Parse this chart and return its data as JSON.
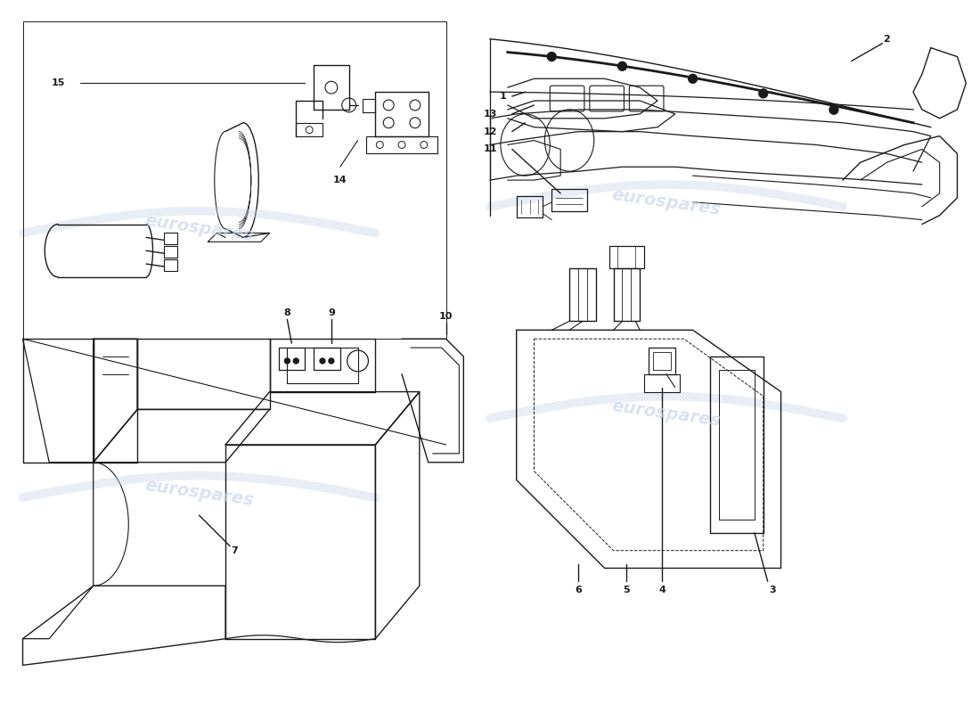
{
  "background_color": "#ffffff",
  "line_color": "#1a1a1a",
  "watermark_color": "#c8d4e8",
  "watermark_text": "eurospares"
}
